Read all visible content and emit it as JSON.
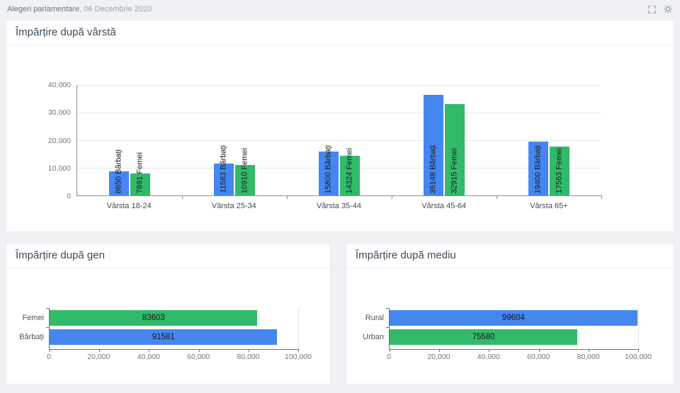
{
  "header": {
    "title": "Alegeri parlamentare",
    "date": ", 06 Decembrie 2020",
    "icons": [
      "fullscreen-icon",
      "gear-icon"
    ]
  },
  "colors": {
    "male_blue": "#4586f0",
    "female_green": "#32ba6b",
    "axis": "#707070",
    "grid": "#e6e6e6"
  },
  "cards": {
    "age": {
      "title": "Împărțire după vârstă"
    },
    "gender": {
      "title": "Împărțire după gen"
    },
    "medium": {
      "title": "Împărțire după mediu"
    }
  },
  "chart_data": [
    {
      "type": "bar",
      "title": "Împărțire după vârstă",
      "categories": [
        "Vârsta 18-24",
        "Vârsta 25-34",
        "Vârsta 35-44",
        "Vârsta 45-64",
        "Vârsta 65+"
      ],
      "series": [
        {
          "name": "Bărbați",
          "color": "#4586f0",
          "values": [
            8650,
            11583,
            15800,
            36148,
            19400
          ]
        },
        {
          "name": "Femei",
          "color": "#32ba6b",
          "values": [
            7891,
            10910,
            14324,
            32915,
            17563
          ]
        }
      ],
      "ylim": [
        0,
        40000
      ],
      "yticks": [
        {
          "value": 40000,
          "label": "40,000"
        },
        {
          "value": 30000,
          "label": "30,000"
        },
        {
          "value": 20000,
          "label": "20,000"
        },
        {
          "value": 10000,
          "label": "10,000"
        },
        {
          "value": 0,
          "label": "0"
        }
      ],
      "bar_label_format": "value series",
      "grid": true,
      "legend": "none"
    },
    {
      "type": "bar",
      "orientation": "horizontal",
      "title": "Împărțire după gen",
      "categories": [
        "Femei",
        "Bărbați"
      ],
      "values": [
        83603,
        91581
      ],
      "bar_colors": [
        "#32ba6b",
        "#4586f0"
      ],
      "xlim": [
        0,
        100000
      ],
      "xticks": [
        {
          "value": 0,
          "label": "0"
        },
        {
          "value": 20000,
          "label": "20,000"
        },
        {
          "value": 40000,
          "label": "40,000"
        },
        {
          "value": 60000,
          "label": "60,000"
        },
        {
          "value": 80000,
          "label": "80,000"
        },
        {
          "value": 100000,
          "label": "100,000"
        }
      ],
      "grid": false,
      "legend": "none"
    },
    {
      "type": "bar",
      "orientation": "horizontal",
      "title": "Împărțire după mediu",
      "categories": [
        "Rural",
        "Urban"
      ],
      "values": [
        99604,
        75580
      ],
      "bar_colors": [
        "#4586f0",
        "#32ba6b"
      ],
      "xlim": [
        0,
        100000
      ],
      "xticks": [
        {
          "value": 0,
          "label": "0"
        },
        {
          "value": 20000,
          "label": "20,000"
        },
        {
          "value": 40000,
          "label": "40,000"
        },
        {
          "value": 60000,
          "label": "60,000"
        },
        {
          "value": 80000,
          "label": "80,000"
        },
        {
          "value": 100000,
          "label": "100,000"
        }
      ],
      "grid": false,
      "legend": "none"
    }
  ]
}
